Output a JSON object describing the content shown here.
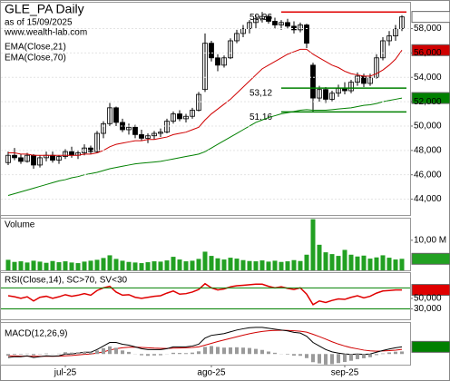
{
  "chart_data": [
    {
      "type": "candlestick",
      "title": "GLE_PA Daily",
      "subtitle": "as of 15/09/2025",
      "source": "www.wealth-lab.com",
      "categories": [
        null,
        null,
        null,
        null,
        null,
        null,
        null,
        null,
        null,
        "jul-25",
        null,
        null,
        null,
        null,
        null,
        null,
        null,
        null,
        null,
        null,
        null,
        null,
        null,
        null,
        null,
        null,
        null,
        null,
        null,
        null,
        null,
        null,
        "ago-25",
        null,
        null,
        null,
        null,
        null,
        null,
        null,
        null,
        null,
        null,
        null,
        null,
        null,
        null,
        null,
        null,
        null,
        null,
        null,
        null,
        "sep-25",
        null,
        null,
        null,
        null,
        null,
        null,
        null,
        null,
        null
      ],
      "open": [
        47.0,
        47.6,
        47.4,
        47.1,
        47.6,
        46.8,
        47.4,
        47.6,
        47.2,
        47.5,
        47.9,
        47.6,
        47.8,
        48.2,
        47.9,
        49.4,
        50.2,
        51.5,
        50.3,
        49.7,
        49.9,
        49.3,
        49.0,
        49.2,
        49.4,
        49.5,
        50.4,
        51.0,
        50.6,
        50.8,
        51.3,
        53.0,
        56.8,
        55.6,
        55.0,
        55.6,
        57.0,
        57.6,
        58.0,
        58.5,
        58.8,
        59.0,
        58.6,
        58.3,
        58.5,
        58.2,
        57.9,
        58.3,
        55.0,
        52.3,
        53.0,
        52.2,
        52.7,
        53.1,
        52.9,
        53.6,
        54.1,
        53.5,
        54.0,
        55.6,
        57.0,
        57.4,
        58.0
      ],
      "high": [
        47.9,
        48.2,
        47.7,
        47.8,
        47.7,
        47.6,
        47.9,
        47.9,
        47.6,
        48.1,
        48.3,
        48.0,
        48.5,
        48.4,
        49.6,
        50.4,
        51.9,
        51.6,
        50.6,
        50.2,
        50.1,
        49.7,
        49.4,
        49.6,
        49.8,
        50.6,
        51.2,
        51.3,
        51.0,
        51.5,
        52.8,
        57.6,
        57.0,
        55.9,
        55.8,
        57.2,
        57.9,
        58.3,
        58.7,
        59.1,
        59.36,
        59.2,
        58.9,
        58.7,
        58.8,
        58.6,
        58.5,
        58.4,
        55.2,
        53.3,
        53.2,
        52.9,
        53.4,
        53.6,
        53.8,
        54.4,
        54.3,
        54.3,
        55.9,
        57.3,
        57.8,
        58.3,
        59.1
      ],
      "low": [
        46.8,
        47.2,
        46.9,
        47.0,
        46.5,
        46.6,
        47.1,
        47.0,
        46.9,
        47.3,
        47.4,
        47.3,
        47.6,
        47.7,
        47.8,
        49.0,
        50.0,
        50.0,
        49.5,
        49.3,
        49.0,
        48.8,
        48.6,
        48.9,
        49.1,
        49.4,
        50.2,
        50.4,
        50.3,
        50.6,
        51.2,
        52.8,
        55.3,
        54.5,
        54.8,
        55.5,
        56.8,
        57.3,
        57.6,
        58.0,
        58.5,
        58.4,
        58.0,
        57.9,
        58.0,
        57.6,
        57.7,
        56.4,
        51.16,
        52.0,
        51.9,
        52.0,
        52.4,
        52.6,
        52.7,
        53.3,
        53.2,
        53.3,
        53.9,
        55.4,
        56.6,
        57.0,
        57.8
      ],
      "close": [
        47.6,
        47.4,
        47.1,
        47.6,
        46.8,
        47.4,
        47.6,
        47.2,
        47.5,
        47.9,
        47.6,
        47.8,
        48.2,
        47.9,
        49.4,
        50.2,
        51.5,
        50.3,
        49.7,
        49.9,
        49.3,
        49.0,
        49.2,
        49.4,
        49.5,
        50.4,
        51.0,
        50.6,
        50.8,
        51.3,
        52.6,
        56.8,
        55.6,
        55.0,
        55.6,
        57.0,
        57.6,
        58.0,
        58.5,
        58.8,
        59.0,
        58.6,
        58.3,
        58.5,
        58.2,
        57.9,
        58.3,
        56.8,
        52.3,
        53.0,
        52.2,
        52.7,
        53.1,
        52.9,
        53.6,
        54.1,
        53.5,
        54.0,
        55.6,
        57.0,
        57.4,
        58.0,
        58.96
      ],
      "last_label": "58,960",
      "ylim": [
        42.7,
        60.2
      ],
      "yticks": [
        {
          "value": 44,
          "label": "44,000"
        },
        {
          "value": 46,
          "label": "46,000"
        },
        {
          "value": 48,
          "label": "48,000"
        },
        {
          "value": 50,
          "label": "50,000"
        },
        {
          "value": 52,
          "label": "52,000"
        },
        {
          "value": 54,
          "label": "54,000"
        },
        {
          "value": 56,
          "label": "56,000"
        },
        {
          "value": 58,
          "label": "58,000"
        }
      ],
      "grid": true,
      "series": [
        {
          "name": "EMA(Close,21)",
          "color": "#d00000",
          "last_label": "56,231",
          "values": [
            47.8,
            47.8,
            47.7,
            47.7,
            47.6,
            47.6,
            47.6,
            47.6,
            47.6,
            47.6,
            47.6,
            47.6,
            47.7,
            47.7,
            47.8,
            48.0,
            48.3,
            48.5,
            48.6,
            48.7,
            48.8,
            48.8,
            48.9,
            48.9,
            49.0,
            49.1,
            49.3,
            49.4,
            49.5,
            49.7,
            49.9,
            50.5,
            51.0,
            51.4,
            51.8,
            52.2,
            52.7,
            53.2,
            53.7,
            54.2,
            54.7,
            55.0,
            55.3,
            55.6,
            55.9,
            56.1,
            56.3,
            56.3,
            55.9,
            55.6,
            55.3,
            55.0,
            54.8,
            54.5,
            54.3,
            54.2,
            54.1,
            54.1,
            54.3,
            54.6,
            55.0,
            55.5,
            56.231
          ]
        },
        {
          "name": "EMA(Close,70)",
          "color": "#008000",
          "last_label": "52,300",
          "values": [
            44.3,
            44.45,
            44.6,
            44.75,
            44.9,
            45.05,
            45.2,
            45.35,
            45.5,
            45.6,
            45.75,
            45.85,
            46.0,
            46.1,
            46.2,
            46.35,
            46.5,
            46.6,
            46.7,
            46.8,
            46.9,
            46.95,
            47.0,
            47.05,
            47.1,
            47.2,
            47.3,
            47.4,
            47.5,
            47.6,
            47.7,
            47.9,
            48.2,
            48.5,
            48.8,
            49.1,
            49.4,
            49.7,
            50.0,
            50.3,
            50.5,
            50.7,
            50.85,
            51.0,
            51.1,
            51.2,
            51.3,
            51.35,
            51.3,
            51.3,
            51.3,
            51.35,
            51.4,
            51.45,
            51.5,
            51.6,
            51.7,
            51.75,
            51.85,
            52.0,
            52.1,
            52.2,
            52.3
          ]
        }
      ],
      "levels": [
        {
          "value": 59.36,
          "label": "59,36",
          "color": "#e00000"
        },
        {
          "value": 53.12,
          "label": "53,12",
          "color": "#008000"
        },
        {
          "value": 51.16,
          "label": "51,16",
          "color": "#008000"
        }
      ]
    },
    {
      "type": "bar",
      "title": "Volume",
      "color": "#22a022",
      "last_label": "3,83 M",
      "values": [
        3.5,
        2.8,
        3.0,
        2.6,
        3.2,
        2.9,
        2.5,
        3.1,
        2.7,
        3.0,
        2.6,
        2.4,
        2.9,
        3.2,
        3.5,
        4.1,
        5.0,
        3.8,
        3.2,
        2.8,
        2.6,
        2.4,
        2.7,
        3.0,
        2.9,
        3.3,
        4.5,
        3.6,
        3.0,
        3.2,
        3.8,
        6.2,
        4.8,
        4.0,
        3.6,
        4.2,
        3.9,
        3.4,
        3.1,
        3.0,
        3.3,
        2.9,
        3.2,
        2.8,
        3.0,
        3.4,
        3.1,
        5.2,
        17.0,
        8.5,
        6.0,
        5.4,
        4.8,
        6.8,
        5.2,
        4.6,
        4.9,
        3.9,
        4.3,
        5.0,
        4.2,
        3.6,
        3.83
      ],
      "ylim": [
        0,
        17.5
      ],
      "yticks": [
        {
          "value": 10,
          "label": "10,00 M"
        }
      ]
    },
    {
      "type": "line",
      "title": "RSI(Close,14), SC>70, SV<30",
      "color": "#e00000",
      "last_label": "66,1063",
      "values": [
        55,
        53,
        50,
        53,
        45,
        52,
        54,
        50,
        53,
        57,
        54,
        56,
        59,
        56,
        65,
        70,
        73,
        62,
        56,
        57,
        52,
        50,
        52,
        54,
        55,
        60,
        64,
        58,
        59,
        62,
        67,
        78,
        70,
        66,
        68,
        72,
        74,
        75,
        76,
        77,
        77,
        73,
        70,
        72,
        69,
        67,
        70,
        58,
        38,
        45,
        42,
        46,
        49,
        48,
        52,
        55,
        51,
        54,
        60,
        64,
        65,
        66,
        66.1063
      ],
      "ylim": [
        10,
        100
      ],
      "yticks": [
        {
          "value": 50,
          "label": "50,000"
        },
        {
          "value": 30,
          "label": "30,000"
        }
      ],
      "levels": [
        70,
        30
      ],
      "level_color": "#008000"
    },
    {
      "type": "macd",
      "title": "MACD(12,26,9)",
      "last_label": "0,4031",
      "ylim": [
        -0.6,
        1.8
      ],
      "series": [
        {
          "color": "#000000",
          "values": [
            -0.2,
            -0.15,
            -0.15,
            -0.1,
            -0.2,
            -0.15,
            -0.1,
            -0.12,
            -0.1,
            0.0,
            0.0,
            0.05,
            0.1,
            0.1,
            0.25,
            0.45,
            0.65,
            0.65,
            0.55,
            0.5,
            0.4,
            0.3,
            0.25,
            0.25,
            0.25,
            0.3,
            0.4,
            0.4,
            0.4,
            0.45,
            0.55,
            0.9,
            1.05,
            1.1,
            1.15,
            1.25,
            1.35,
            1.42,
            1.48,
            1.5,
            1.5,
            1.45,
            1.4,
            1.35,
            1.3,
            1.22,
            1.18,
            1.0,
            0.65,
            0.45,
            0.25,
            0.12,
            0.05,
            0.0,
            -0.02,
            0.0,
            -0.02,
            0.0,
            0.1,
            0.2,
            0.28,
            0.35,
            0.4031
          ]
        },
        {
          "color": "#d00000",
          "values": [
            -0.1,
            -0.11,
            -0.12,
            -0.12,
            -0.13,
            -0.13,
            -0.13,
            -0.13,
            -0.12,
            -0.1,
            -0.08,
            -0.05,
            -0.02,
            0.0,
            0.05,
            0.12,
            0.22,
            0.3,
            0.35,
            0.38,
            0.39,
            0.37,
            0.35,
            0.33,
            0.32,
            0.31,
            0.33,
            0.34,
            0.35,
            0.37,
            0.4,
            0.5,
            0.6,
            0.7,
            0.79,
            0.88,
            0.97,
            1.06,
            1.14,
            1.21,
            1.27,
            1.31,
            1.33,
            1.34,
            1.33,
            1.31,
            1.28,
            1.23,
            1.11,
            0.98,
            0.84,
            0.69,
            0.56,
            0.45,
            0.36,
            0.29,
            0.22,
            0.18,
            0.16,
            0.17,
            0.19,
            0.22,
            0.26
          ]
        }
      ],
      "histogram": {
        "color": "#9a9a9a",
        "values": [
          -0.1,
          -0.04,
          -0.03,
          0.02,
          -0.07,
          -0.02,
          0.03,
          0.01,
          0.02,
          0.1,
          0.08,
          0.1,
          0.12,
          0.1,
          0.2,
          0.33,
          0.43,
          0.35,
          0.2,
          0.12,
          0.01,
          -0.07,
          -0.1,
          -0.08,
          -0.07,
          -0.01,
          0.07,
          0.06,
          0.05,
          0.08,
          0.15,
          0.4,
          0.45,
          0.4,
          0.36,
          0.37,
          0.38,
          0.36,
          0.34,
          0.29,
          0.23,
          0.14,
          0.07,
          0.01,
          -0.03,
          -0.09,
          -0.1,
          -0.23,
          -0.46,
          -0.53,
          -0.59,
          -0.57,
          -0.51,
          -0.45,
          -0.38,
          -0.29,
          -0.24,
          -0.18,
          -0.06,
          0.03,
          0.09,
          0.13,
          0.1431
        ]
      }
    }
  ]
}
